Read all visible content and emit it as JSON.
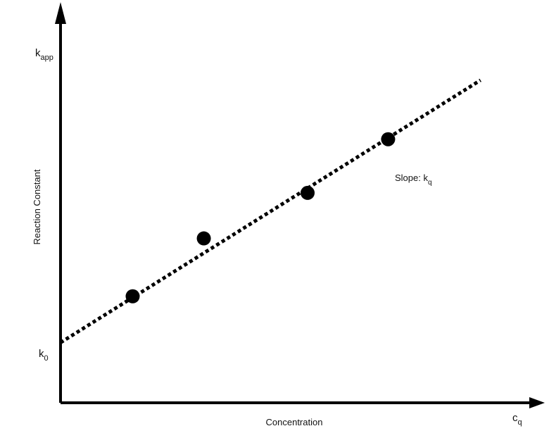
{
  "chart_data": {
    "type": "scatter",
    "xlabel": "Concentration",
    "ylabel": "Reaction Constant",
    "x_axis_end_label": {
      "main": "c",
      "sub": "q"
    },
    "y_axis_end_label": {
      "main": "k",
      "sub": "app"
    },
    "intercept_label": {
      "main": "k",
      "sub": "0"
    },
    "slope_annotation": {
      "main": "Slope: k",
      "sub": "q"
    },
    "xlim": [
      0,
      100
    ],
    "ylim": [
      0,
      100
    ],
    "points": [
      {
        "x": 14.6,
        "y": 27.6
      },
      {
        "x": 29.0,
        "y": 42.6
      },
      {
        "x": 50.0,
        "y": 54.4
      },
      {
        "x": 66.3,
        "y": 68.3
      }
    ],
    "fit_line": {
      "intercept": 15.6,
      "slope": 0.8,
      "x_end": 85.0,
      "style": "dotted"
    },
    "grid": false,
    "legend": "none"
  }
}
